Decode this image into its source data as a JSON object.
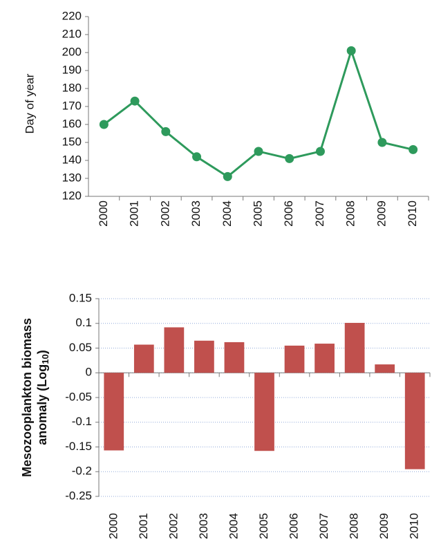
{
  "chart_data": [
    {
      "type": "line",
      "ylabel": "Day of year",
      "categories": [
        "2000",
        "2001",
        "2002",
        "2003",
        "2004",
        "2005",
        "2006",
        "2007",
        "2008",
        "2009",
        "2010"
      ],
      "values": [
        160,
        173,
        156,
        142,
        131,
        145,
        141,
        145,
        201,
        150,
        146
      ],
      "color": "#2e9a5c",
      "ylim": [
        120,
        220
      ],
      "yticks": [
        120,
        130,
        140,
        150,
        160,
        170,
        180,
        190,
        200,
        210,
        220
      ],
      "grid": false
    },
    {
      "type": "bar",
      "ylabel_line1": "Mesozooplankton biomass",
      "ylabel_line2": "anomaly (Log",
      "ylabel_subscript": "10",
      "ylabel_end": ")",
      "categories": [
        "2000",
        "2001",
        "2002",
        "2003",
        "2004",
        "2005",
        "2006",
        "2007",
        "2008",
        "2009",
        "2010"
      ],
      "values": [
        -0.157,
        0.057,
        0.092,
        0.065,
        0.062,
        -0.158,
        0.055,
        0.059,
        0.101,
        0.017,
        -0.195
      ],
      "color": "#c0504d",
      "ylim": [
        -0.25,
        0.15
      ],
      "yticks": [
        -0.25,
        -0.2,
        -0.15,
        -0.1,
        -0.05,
        0,
        0.05,
        0.1,
        0.15
      ],
      "grid": true
    }
  ]
}
